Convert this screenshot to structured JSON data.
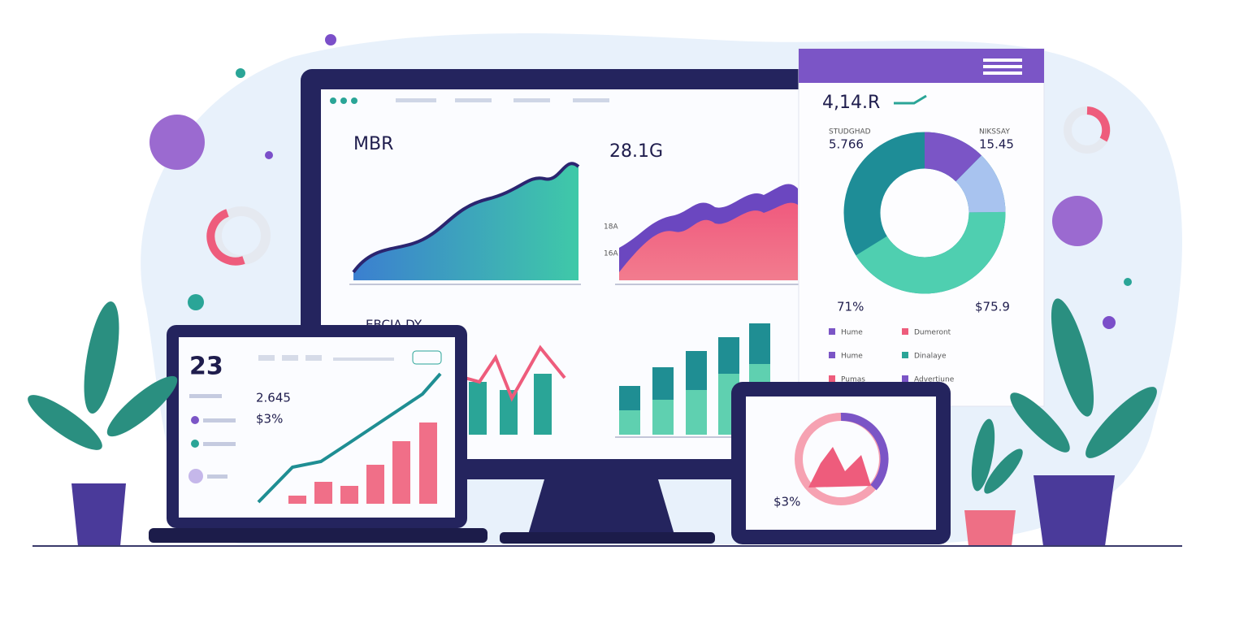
{
  "monitor": {
    "panel1": {
      "title": "MBR"
    },
    "panel2": {
      "title": "28.1G",
      "yticks": [
        "18A",
        "16A"
      ]
    },
    "panel3": {
      "title": "EBCIA.DY"
    }
  },
  "phone": {
    "title": "4,14.R",
    "stat_left": {
      "label": "STUDGHAD",
      "value": "5.766"
    },
    "stat_right": {
      "label": "NIKSSAY",
      "value": "15.45"
    },
    "pct_left": "71%",
    "pct_right": "$75.9",
    "legend": [
      "Hume",
      "Dumeront",
      "Hume",
      "Dinalaye",
      "Pumas",
      "Advertiune"
    ]
  },
  "laptop": {
    "big": "23",
    "stat1": "2.645",
    "stat2": "$3%"
  },
  "tablet": {
    "label": "$3%"
  }
}
